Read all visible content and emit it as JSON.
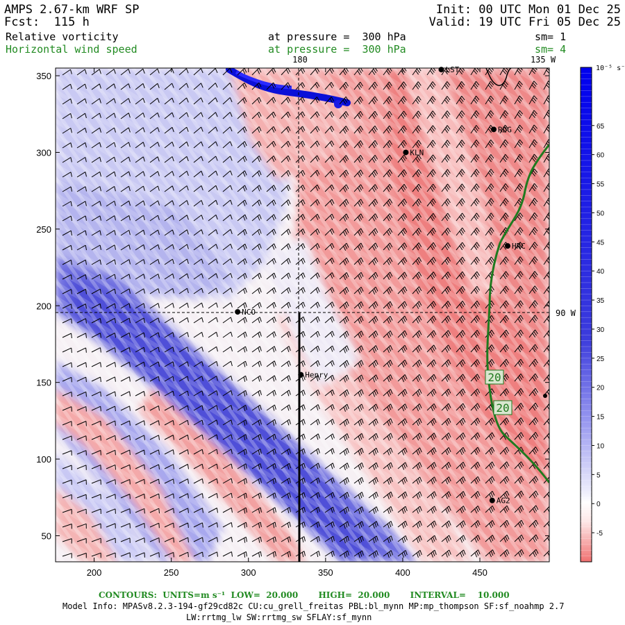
{
  "header": {
    "model": "AMPS 2.67-km WRF SP",
    "forecast": "Fcst:  115 h",
    "init": "Init: 00 UTC Mon 01 Dec 25",
    "valid": "Valid: 19 UTC Fri 05 Dec 25",
    "field1_name": "Relative vorticity",
    "field1_level": "at pressure =  300 hPa",
    "field1_smooth": "sm= 1",
    "field2_name": "Horizontal wind speed",
    "field2_level": "at pressure =  300 hPa",
    "field2_smooth": "sm= 4"
  },
  "map": {
    "x_ticks": [
      "200",
      "250",
      "300",
      "350",
      "400",
      "450"
    ],
    "y_ticks": [
      "50",
      "100",
      "150",
      "200",
      "250",
      "300",
      "350"
    ],
    "x_range": [
      175,
      495
    ],
    "y_range": [
      33,
      355
    ],
    "meridian_labels": {
      "top_180": "180",
      "top_135w": "135 W",
      "right_90w": "90 W"
    },
    "stations": [
      {
        "name": "NCO",
        "x": 293,
        "y": 196
      },
      {
        "name": "Henry",
        "x": 334,
        "y": 155
      },
      {
        "name": "KLN",
        "x": 402,
        "y": 300
      },
      {
        "name": "RDG",
        "x": 459,
        "y": 315
      },
      {
        "name": "HRC",
        "x": 468,
        "y": 239
      },
      {
        "name": "AG2",
        "x": 458,
        "y": 73
      },
      {
        "name": "LST",
        "x": 425,
        "y": 354
      }
    ],
    "contour_labels": [
      "20",
      "20"
    ],
    "colors": {
      "vort_pos": "#ee5a5a",
      "vort_neg": "#3c3cdc",
      "contour": "#1f7a1f",
      "barb": "#000000"
    }
  },
  "colorbar": {
    "unit_label": "10⁻⁵ s⁻¹",
    "ticks": [
      "65",
      "60",
      "55",
      "50",
      "45",
      "40",
      "35",
      "30",
      "25",
      "20",
      "15",
      "10",
      "5",
      "0",
      "-5"
    ],
    "range": [
      -10,
      75
    ]
  },
  "footer": {
    "contours_label": "CONTOURS:  UNITS=m s⁻¹  LOW=  20.000       HIGH=  20.000       INTERVAL=    10.000",
    "model_info": "Model Info: MPASv8.2.3-194-gf29cd82c CU:cu_grell_freitas PBL:bl_mynn MP:mp_thompson SF:sf_noahmp 2.7",
    "model_info2": "LW:rrtmg_lw SW:rrtmg_sw SFLAY:sf_mynn"
  }
}
